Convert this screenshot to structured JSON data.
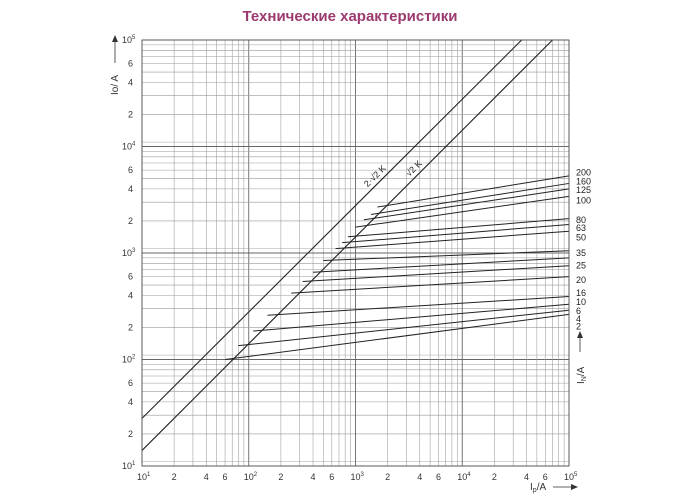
{
  "page": {
    "title": "Технические характеристики"
  },
  "chart_data": {
    "type": "line",
    "title": "Технические характеристики",
    "xlabel": {
      "main": "I",
      "sub": "p",
      "unit": "/A"
    },
    "ylabel": {
      "main": "Io",
      "unit": "/ A"
    },
    "xscale": "log",
    "yscale": "log",
    "xlim": [
      10,
      100000
    ],
    "ylim": [
      10,
      100000
    ],
    "grid": true,
    "x_ticks": [
      {
        "v": 10,
        "m": "10",
        "e": "1"
      },
      {
        "v": 20,
        "m": "2"
      },
      {
        "v": 40,
        "m": "4"
      },
      {
        "v": 60,
        "m": "6"
      },
      {
        "v": 100,
        "m": "10",
        "e": "2"
      },
      {
        "v": 200,
        "m": "2"
      },
      {
        "v": 400,
        "m": "4"
      },
      {
        "v": 600,
        "m": "6"
      },
      {
        "v": 1000,
        "m": "10",
        "e": "3"
      },
      {
        "v": 2000,
        "m": "2"
      },
      {
        "v": 4000,
        "m": "4"
      },
      {
        "v": 6000,
        "m": "6"
      },
      {
        "v": 10000,
        "m": "10",
        "e": "4"
      },
      {
        "v": 20000,
        "m": "2"
      },
      {
        "v": 40000,
        "m": "4"
      },
      {
        "v": 60000,
        "m": "6"
      },
      {
        "v": 100000,
        "m": "10",
        "e": "5"
      }
    ],
    "y_ticks": [
      {
        "v": 10,
        "m": "10",
        "e": "1"
      },
      {
        "v": 20,
        "m": "2"
      },
      {
        "v": 40,
        "m": "4"
      },
      {
        "v": 60,
        "m": "6"
      },
      {
        "v": 100,
        "m": "10",
        "e": "2"
      },
      {
        "v": 200,
        "m": "2"
      },
      {
        "v": 400,
        "m": "4"
      },
      {
        "v": 600,
        "m": "6"
      },
      {
        "v": 1000,
        "m": "10",
        "e": "3"
      },
      {
        "v": 2000,
        "m": "2"
      },
      {
        "v": 4000,
        "m": "4"
      },
      {
        "v": 6000,
        "m": "6"
      },
      {
        "v": 10000,
        "m": "10",
        "e": "4"
      },
      {
        "v": 20000,
        "m": "2"
      },
      {
        "v": 40000,
        "m": "4"
      },
      {
        "v": 60000,
        "m": "6"
      },
      {
        "v": 100000,
        "m": "10",
        "e": "5"
      }
    ],
    "diagonals": [
      {
        "label": "2·√2 K",
        "points": [
          [
            10,
            28
          ],
          [
            36000,
            100000
          ]
        ]
      },
      {
        "label": "√2 K",
        "points": [
          [
            10,
            14
          ],
          [
            70000,
            100000
          ]
        ]
      }
    ],
    "series": [
      {
        "name": "200",
        "points": [
          [
            1600,
            2700
          ],
          [
            100000,
            5300
          ]
        ]
      },
      {
        "name": "160",
        "points": [
          [
            1400,
            2300
          ],
          [
            100000,
            4500
          ]
        ]
      },
      {
        "name": "125",
        "points": [
          [
            1200,
            2050
          ],
          [
            100000,
            4000
          ]
        ]
      },
      {
        "name": "100",
        "points": [
          [
            1000,
            1750
          ],
          [
            100000,
            3400
          ]
        ]
      },
      {
        "name": "80",
        "points": [
          [
            850,
            1420
          ],
          [
            100000,
            2100
          ]
        ]
      },
      {
        "name": "63",
        "points": [
          [
            750,
            1250
          ],
          [
            100000,
            1850
          ]
        ]
      },
      {
        "name": "50",
        "points": [
          [
            650,
            1100
          ],
          [
            100000,
            1600
          ]
        ]
      },
      {
        "name": "35",
        "points": [
          [
            500,
            850
          ],
          [
            100000,
            1050
          ]
        ]
      },
      {
        "name": "25",
        "points": [
          [
            400,
            660
          ],
          [
            100000,
            900
          ]
        ]
      },
      {
        "name": "20",
        "points": [
          [
            320,
            540
          ],
          [
            100000,
            760
          ]
        ]
      },
      {
        "name": "16",
        "points": [
          [
            250,
            420
          ],
          [
            100000,
            600
          ]
        ]
      },
      {
        "name": "10",
        "points": [
          [
            150,
            260
          ],
          [
            100000,
            390
          ]
        ]
      },
      {
        "name": "6",
        "points": [
          [
            110,
            185
          ],
          [
            100000,
            330
          ]
        ]
      },
      {
        "name": "4",
        "points": [
          [
            80,
            135
          ],
          [
            100000,
            290
          ]
        ]
      },
      {
        "name": "2",
        "points": [
          [
            60,
            100
          ],
          [
            100000,
            265
          ]
        ]
      }
    ],
    "series_label_y": [
      {
        "name": "200",
        "v": 5700
      },
      {
        "name": "160",
        "v": 4700
      },
      {
        "name": "125",
        "v": 3900
      },
      {
        "name": "100",
        "v": 3100
      },
      {
        "name": "80",
        "v": 2050
      },
      {
        "name": "63",
        "v": 1720
      },
      {
        "name": "50",
        "v": 1400
      },
      {
        "name": "35",
        "v": 1000
      },
      {
        "name": "25",
        "v": 760
      },
      {
        "name": "20",
        "v": 560
      },
      {
        "name": "16",
        "v": 420
      },
      {
        "name": "10",
        "v": 345
      },
      {
        "name": "6",
        "v": 285
      },
      {
        "name": "4",
        "v": 240
      },
      {
        "name": "2",
        "v": 205
      }
    ],
    "series_axis_label": {
      "main": "I",
      "sub": "N",
      "unit": "/A"
    }
  }
}
